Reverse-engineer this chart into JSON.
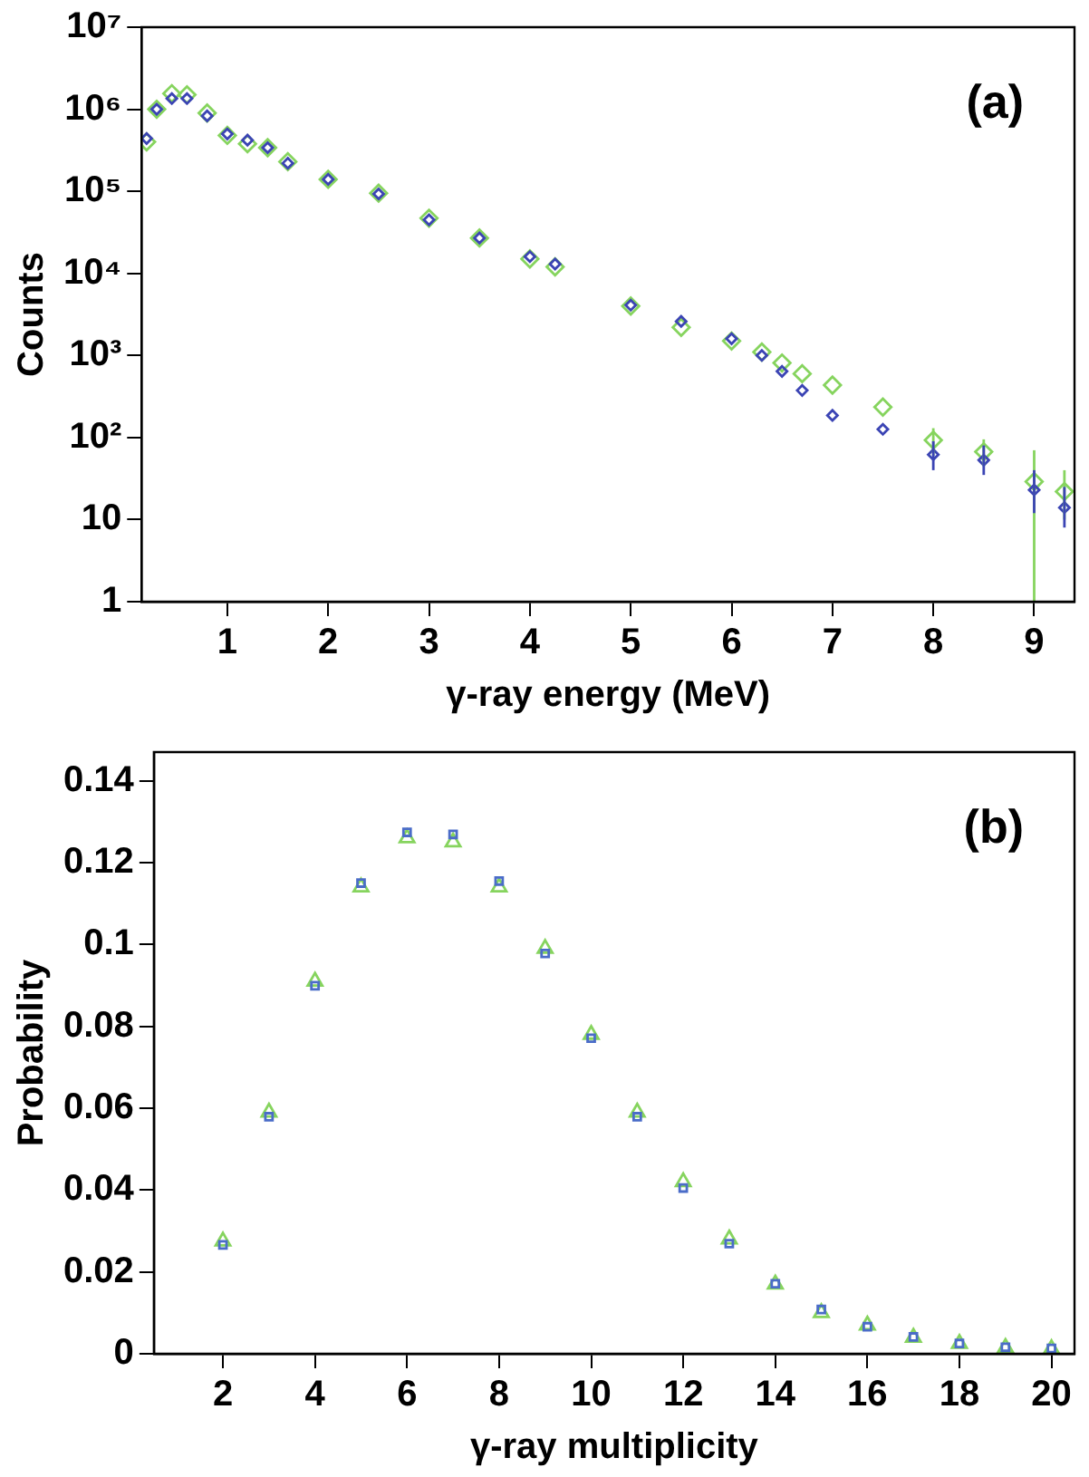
{
  "chart_data": [
    {
      "type": "scatter",
      "xlabel": "γ-ray energy (MeV)",
      "ylabel": "Counts",
      "annotations": [
        "(a)"
      ],
      "log": "y",
      "xlim": [
        0.15,
        9.4
      ],
      "xticks": [
        1,
        2,
        3,
        4,
        5,
        6,
        7,
        8,
        9
      ],
      "ylim": [
        1,
        10000000
      ],
      "yticks": [
        1,
        10,
        {
          "value": 100,
          "label": "10²"
        },
        {
          "value": 1000,
          "label": "10³"
        },
        {
          "value": 10000,
          "label": "10⁴"
        },
        {
          "value": 100000,
          "label": "10⁵"
        },
        {
          "value": 1000000,
          "label": "10⁶"
        },
        {
          "value": 10000000,
          "label": "10⁷"
        }
      ],
      "series": [
        {
          "color": "#86d45e",
          "marker": "diamond",
          "x": [
            0.2,
            0.3,
            0.45,
            0.6,
            0.8,
            1.0,
            1.2,
            1.4,
            1.6,
            2.0,
            2.5,
            3.0,
            3.5,
            4.0,
            4.25,
            5.0,
            5.5,
            6.0,
            6.3,
            6.5,
            6.7,
            7.0,
            7.5,
            8.0,
            8.5,
            9.0,
            9.3
          ],
          "values": [
            400000,
            1000000,
            1550000,
            1500000,
            900000,
            480000,
            380000,
            340000,
            230000,
            140000,
            95000,
            47000,
            27000,
            15000,
            12000,
            4000,
            2200,
            1500,
            1100,
            810,
            600,
            435,
            235,
            93,
            67,
            29,
            22
          ],
          "errors": [
            null,
            null,
            null,
            null,
            null,
            null,
            null,
            null,
            null,
            null,
            null,
            null,
            null,
            null,
            null,
            null,
            null,
            null,
            null,
            null,
            null,
            null,
            null,
            [
              60,
              130
            ],
            [
              45,
              95
            ],
            [
              1,
              70
            ],
            [
              10,
              40
            ]
          ]
        },
        {
          "color": "#3b44b4",
          "marker": "diamond",
          "x": [
            0.2,
            0.3,
            0.45,
            0.6,
            0.8,
            1.0,
            1.2,
            1.4,
            1.6,
            2.0,
            2.5,
            3.0,
            3.5,
            4.0,
            4.25,
            5.0,
            5.5,
            6.0,
            6.3,
            6.5,
            6.7,
            7.0,
            7.5,
            8.0,
            8.5,
            9.0,
            9.3
          ],
          "values": [
            440000,
            1000000,
            1350000,
            1350000,
            830000,
            500000,
            420000,
            340000,
            220000,
            140000,
            93000,
            45000,
            27000,
            16000,
            13000,
            4100,
            2600,
            1600,
            1000,
            640,
            375,
            186,
            126,
            62,
            53,
            23,
            14
          ],
          "errors": [
            null,
            null,
            null,
            null,
            null,
            null,
            null,
            null,
            null,
            null,
            null,
            null,
            null,
            null,
            null,
            null,
            null,
            null,
            null,
            null,
            null,
            null,
            null,
            [
              40,
              90
            ],
            [
              35,
              80
            ],
            [
              12,
              40
            ],
            [
              8,
              25
            ]
          ]
        }
      ]
    },
    {
      "type": "scatter",
      "xlabel": "γ-ray multiplicity",
      "ylabel": "Probability",
      "annotations": [
        "(b)"
      ],
      "xlim": [
        0.5,
        20.5
      ],
      "xticks": [
        2,
        4,
        6,
        8,
        10,
        12,
        14,
        16,
        18,
        20
      ],
      "ylim": [
        0,
        0.147
      ],
      "yticks": [
        0,
        0.02,
        0.04,
        0.06,
        0.08,
        0.1,
        0.12,
        0.14
      ],
      "series": [
        {
          "color": "#86d45e",
          "marker": "triangle",
          "x": [
            2,
            3,
            4,
            5,
            6,
            7,
            8,
            9,
            10,
            11,
            12,
            13,
            14,
            15,
            16,
            17,
            18,
            19,
            20
          ],
          "values": [
            0.0275,
            0.059,
            0.091,
            0.114,
            0.126,
            0.125,
            0.114,
            0.099,
            0.078,
            0.059,
            0.042,
            0.028,
            0.017,
            0.01,
            0.007,
            0.004,
            0.0025,
            0.0015,
            0.0012
          ]
        },
        {
          "color": "#4a6cc8",
          "marker": "square",
          "x": [
            2,
            3,
            4,
            5,
            6,
            7,
            8,
            9,
            10,
            11,
            12,
            13,
            14,
            15,
            16,
            17,
            18,
            19,
            20
          ],
          "values": [
            0.0266,
            0.0579,
            0.0899,
            0.115,
            0.1274,
            0.1269,
            0.1155,
            0.0978,
            0.0771,
            0.0579,
            0.0405,
            0.0269,
            0.0171,
            0.0108,
            0.0066,
            0.0041,
            0.0025,
            0.0016,
            0.0013
          ]
        }
      ]
    }
  ]
}
